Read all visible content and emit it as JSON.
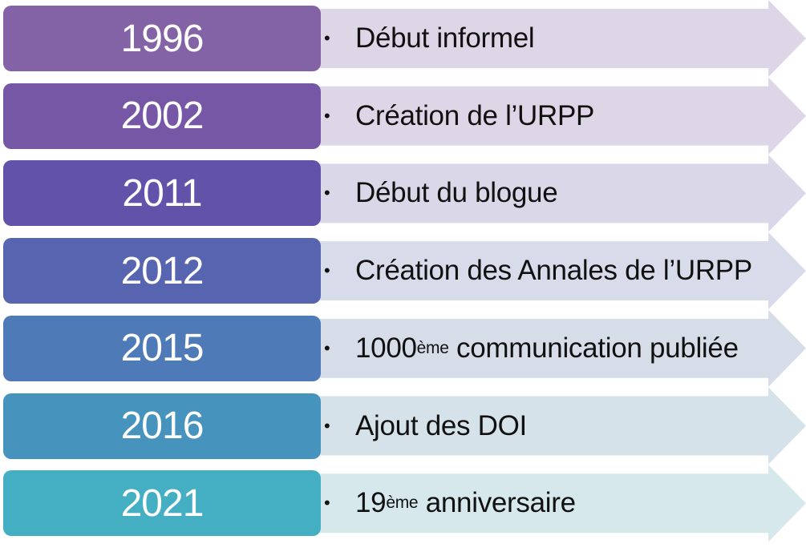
{
  "timeline": {
    "items": [
      {
        "year": "1996",
        "pre": "Début informel",
        "sup": "",
        "post": "",
        "color": "#8462a6",
        "arrow_color": "#dcd6e6"
      },
      {
        "year": "2002",
        "pre": "Création de l’URPP",
        "sup": "",
        "post": "",
        "color": "#7657a6",
        "arrow_color": "#dcd6e6"
      },
      {
        "year": "2011",
        "pre": "Début du blogue",
        "sup": "",
        "post": "",
        "color": "#6252aa",
        "arrow_color": "#dad7e8"
      },
      {
        "year": "2012",
        "pre": "Création des Annales de l’URPP",
        "sup": "",
        "post": "",
        "color": "#5764b0",
        "arrow_color": "#d8dbea"
      },
      {
        "year": "2015",
        "pre": "1000",
        "sup": "ème",
        "post": " communication publiée",
        "color": "#4e7ab7",
        "arrow_color": "#d6dde9"
      },
      {
        "year": "2016",
        "pre": "Ajout des DOI",
        "sup": "",
        "post": "",
        "color": "#4693bd",
        "arrow_color": "#d5e2ea"
      },
      {
        "year": "2021",
        "pre": "19",
        "sup": "ème",
        "post": " anniversaire",
        "color": "#44aec3",
        "arrow_color": "#d6e8ec"
      }
    ],
    "bullet": "•"
  }
}
